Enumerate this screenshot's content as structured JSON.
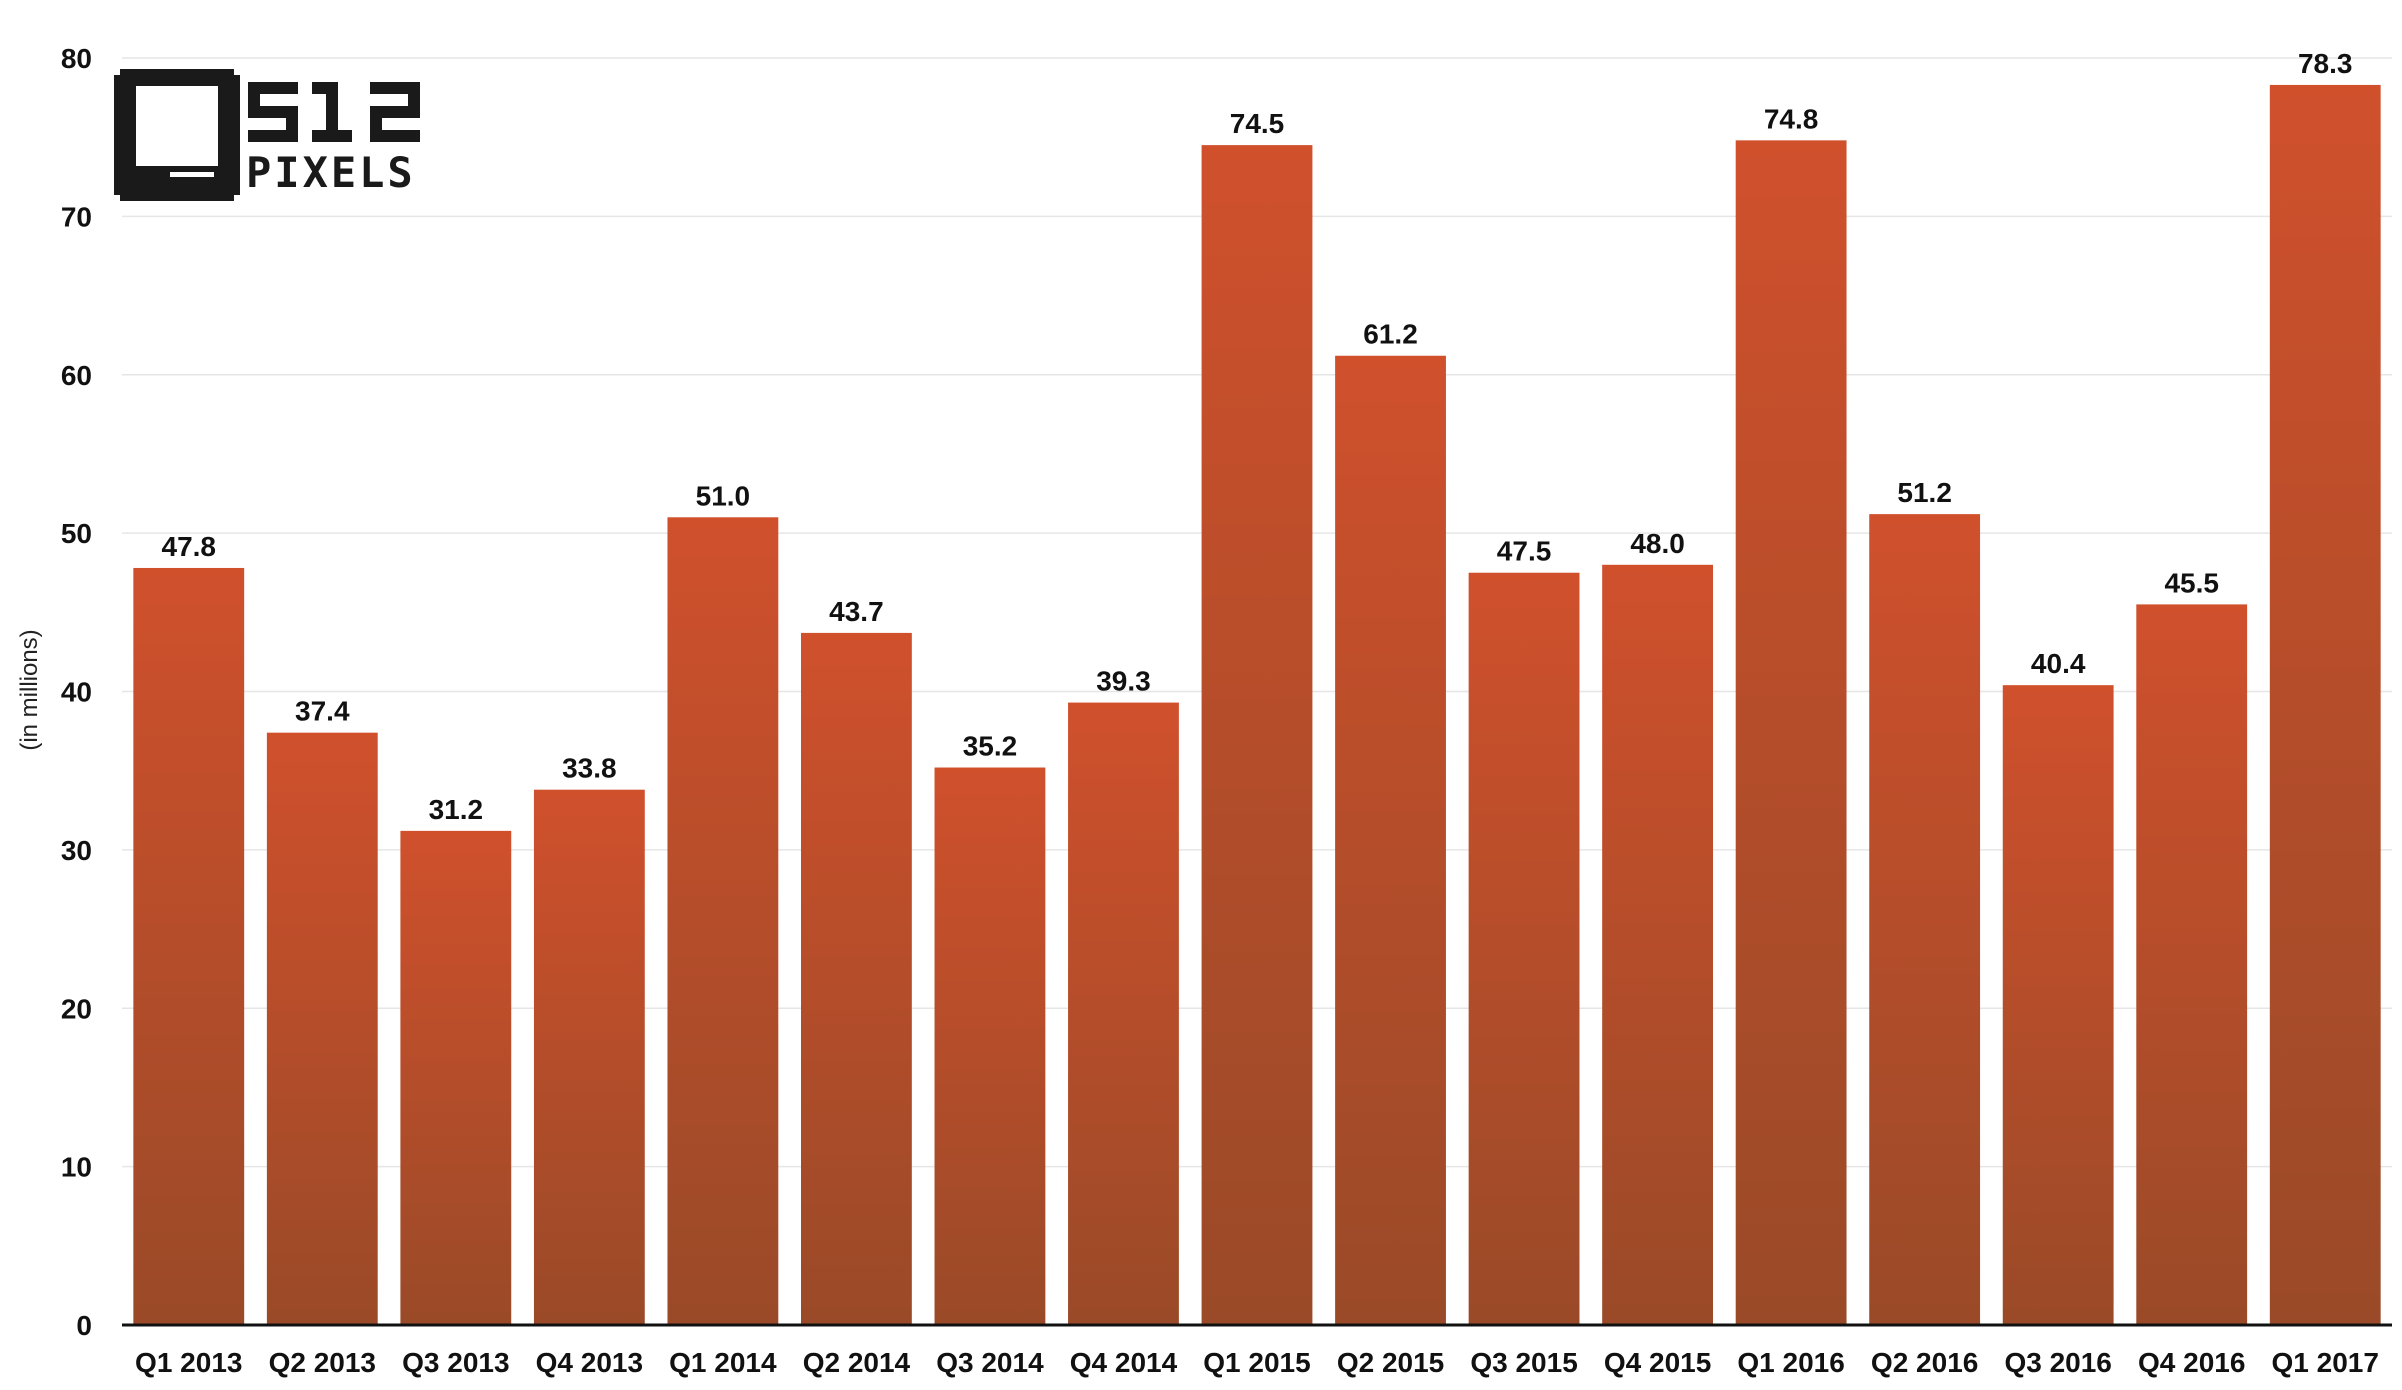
{
  "logo": {
    "number_text": "512",
    "word_text": "PIXELS"
  },
  "chart_data": {
    "type": "bar",
    "ylabel": "(in millions)",
    "xlabel": "",
    "ylim": [
      0,
      80
    ],
    "yticks": [
      0,
      10,
      20,
      30,
      40,
      50,
      60,
      70,
      80
    ],
    "grid": true,
    "categories": [
      "Q1 2013",
      "Q2 2013",
      "Q3 2013",
      "Q4 2013",
      "Q1 2014",
      "Q2 2014",
      "Q3 2014",
      "Q4 2014",
      "Q1 2015",
      "Q2 2015",
      "Q3 2015",
      "Q4 2015",
      "Q1 2016",
      "Q2 2016",
      "Q3 2016",
      "Q4 2016",
      "Q1 2017"
    ],
    "values": [
      47.8,
      37.4,
      31.2,
      33.8,
      51.0,
      43.7,
      35.2,
      39.3,
      74.5,
      61.2,
      47.5,
      48.0,
      74.8,
      51.2,
      40.4,
      45.5,
      78.3
    ],
    "data_labels": [
      "47.8",
      "37.4",
      "31.2",
      "33.8",
      "51.0",
      "43.7",
      "35.2",
      "39.3",
      "74.5",
      "61.2",
      "47.5",
      "48.0",
      "74.8",
      "51.2",
      "40.4",
      "45.5",
      "78.3"
    ],
    "colors": {
      "bar_top": "#d0502c",
      "bar_bottom": "#9a4a28"
    }
  }
}
